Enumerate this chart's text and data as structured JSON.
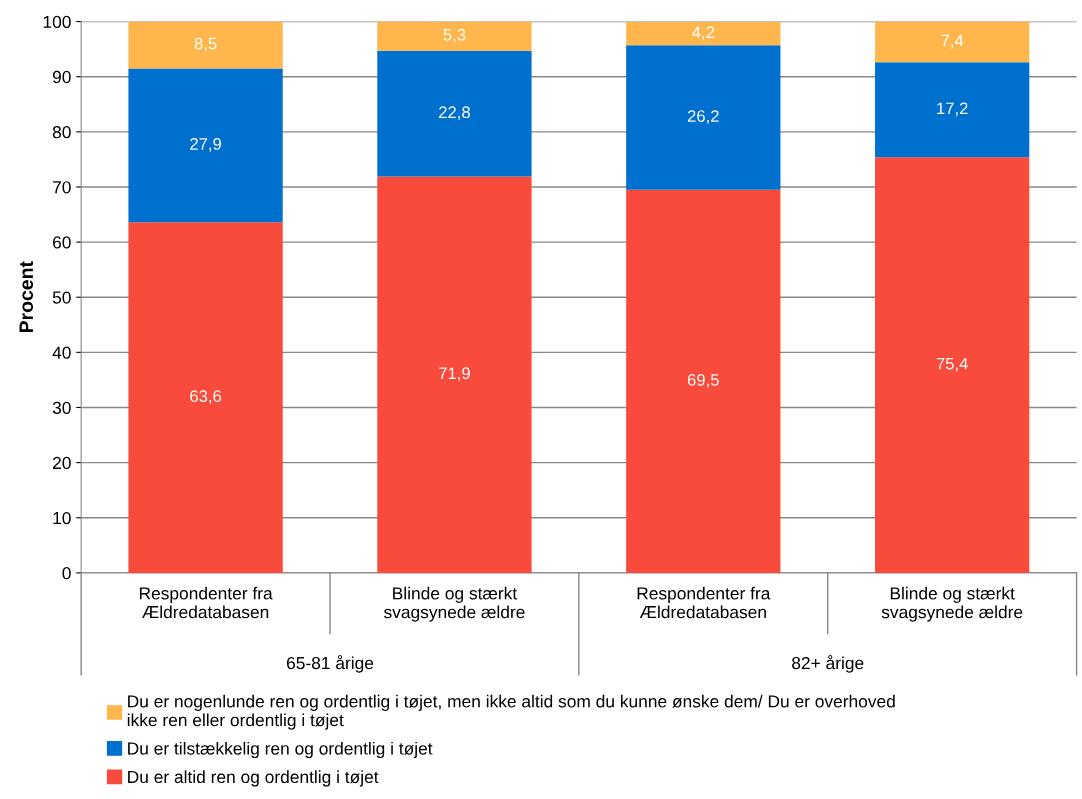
{
  "chart_data": {
    "type": "bar",
    "stacked": true,
    "ylabel": "Procent",
    "categories": [
      "Respondenter fra\nÆldredatabasen",
      "Blinde og stærkt\nsvagsynede ældre",
      "Respondenter fra\nÆldredatabasen",
      "Blinde og stærkt\nsvagsynede ældre"
    ],
    "series": [
      {
        "name": "Du er altid ren og ordentlig i tøjet",
        "color": "#f84b3b",
        "values": [
          63.6,
          71.9,
          69.5,
          75.4
        ],
        "value_labels": [
          "63,6",
          "71,9",
          "69,5",
          "75,4"
        ]
      },
      {
        "name": "Du er tilstækkelig ren og ordentlig i tøjet",
        "color": "#0070cf",
        "values": [
          27.9,
          22.8,
          26.2,
          17.2
        ],
        "value_labels": [
          "27,9",
          "22,8",
          "26,2",
          "17,2"
        ]
      },
      {
        "name": "Du er nogenlunde ren og ordentlig i tøjet, men ikke altid som du kunne ønske dem/ Du er overhoved\nikke ren eller ordentlig i tøjet",
        "color": "#ffb74d",
        "values": [
          8.5,
          5.3,
          4.2,
          7.4
        ],
        "value_labels": [
          "8,5",
          "5,3",
          "4,2",
          "7,4"
        ]
      }
    ],
    "annotations": [
      "65-81 årige",
      "82+ årige"
    ],
    "ylim": [
      0,
      100
    ],
    "yticks": [
      0,
      10,
      20,
      30,
      40,
      50,
      60,
      70,
      80,
      90,
      100
    ],
    "grid": "y",
    "legend": "bottom"
  }
}
